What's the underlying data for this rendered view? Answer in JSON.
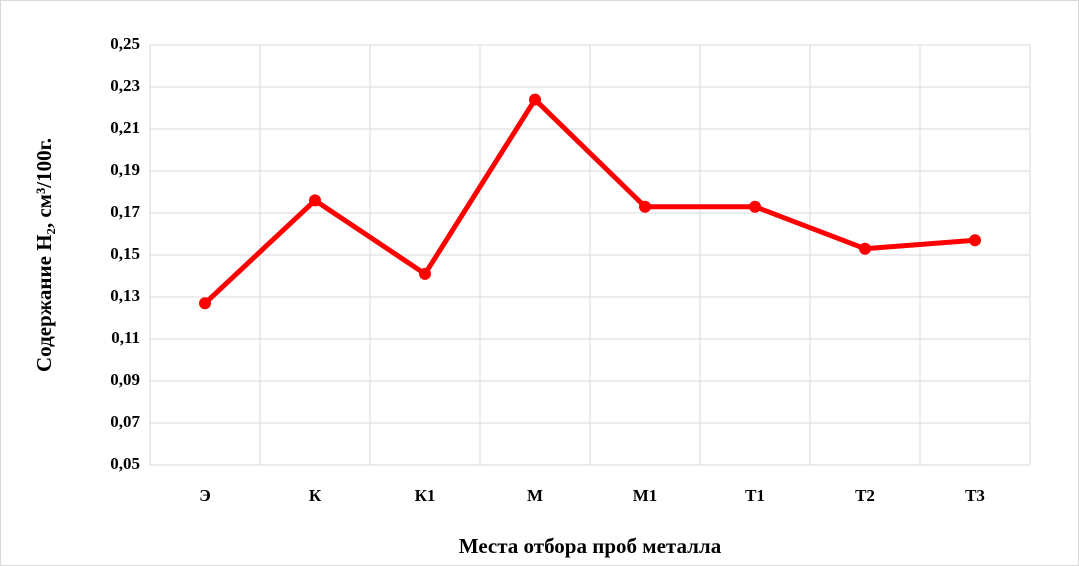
{
  "chart_data": {
    "type": "line",
    "x_label": "Места отбора проб металла",
    "y_label": "Содержание H₂, см³/100г.",
    "categories": [
      "Э",
      "К",
      "К1",
      "М",
      "М1",
      "Т1",
      "Т2",
      "Т3"
    ],
    "series": [
      {
        "name": "Содержание H₂",
        "color": "#ff0000",
        "values": [
          0.127,
          0.176,
          0.141,
          0.224,
          0.173,
          0.173,
          0.153,
          0.157
        ]
      }
    ],
    "ylim": [
      0.05,
      0.25
    ],
    "yticks": [
      {
        "value": 0.05,
        "label": "0,05"
      },
      {
        "value": 0.07,
        "label": "0,07"
      },
      {
        "value": 0.09,
        "label": "0,09"
      },
      {
        "value": 0.11,
        "label": "0,11"
      },
      {
        "value": 0.13,
        "label": "0,13"
      },
      {
        "value": 0.15,
        "label": "0,15"
      },
      {
        "value": 0.17,
        "label": "0,17"
      },
      {
        "value": 0.19,
        "label": "0,19"
      },
      {
        "value": 0.21,
        "label": "0,21"
      },
      {
        "value": 0.23,
        "label": "0,23"
      },
      {
        "value": 0.25,
        "label": "0,25"
      }
    ],
    "grid": true
  }
}
